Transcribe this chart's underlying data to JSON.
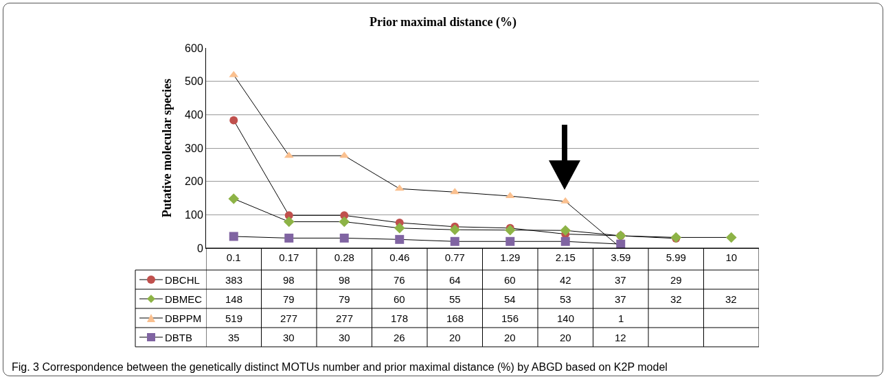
{
  "chart_data": {
    "type": "line",
    "title": "Prior maximal distance (%)",
    "ylabel": "Putative molecular species",
    "categories": [
      "0.1",
      "0.17",
      "0.28",
      "0.46",
      "0.77",
      "1.29",
      "2.15",
      "3.59",
      "5.99",
      "10"
    ],
    "series": [
      {
        "name": "DBCHL",
        "color": "#c0504d",
        "marker": "circle",
        "values": [
          383,
          98,
          98,
          76,
          64,
          60,
          42,
          37,
          29,
          null
        ]
      },
      {
        "name": "DBMEC",
        "color": "#8db346",
        "marker": "diamond",
        "values": [
          148,
          79,
          79,
          60,
          55,
          54,
          53,
          37,
          32,
          32
        ]
      },
      {
        "name": "DBPPM",
        "color": "#fac08f",
        "marker": "triangle",
        "values": [
          519,
          277,
          277,
          178,
          168,
          156,
          140,
          1,
          null,
          null
        ]
      },
      {
        "name": "DBTB",
        "color": "#8064a2",
        "marker": "square",
        "values": [
          35,
          30,
          30,
          26,
          20,
          20,
          20,
          12,
          null,
          null
        ]
      }
    ],
    "ylim": [
      0,
      600
    ],
    "yticks": [
      0,
      100,
      200,
      300,
      400,
      500,
      600
    ],
    "grid": "y",
    "legend": "bottom left",
    "data_labels": true,
    "annotations": [
      "Fig. 3 Correspondence between the genetically distinct MOTUs number and prior maximal distance (%) by ABGD based on K2P model"
    ]
  }
}
